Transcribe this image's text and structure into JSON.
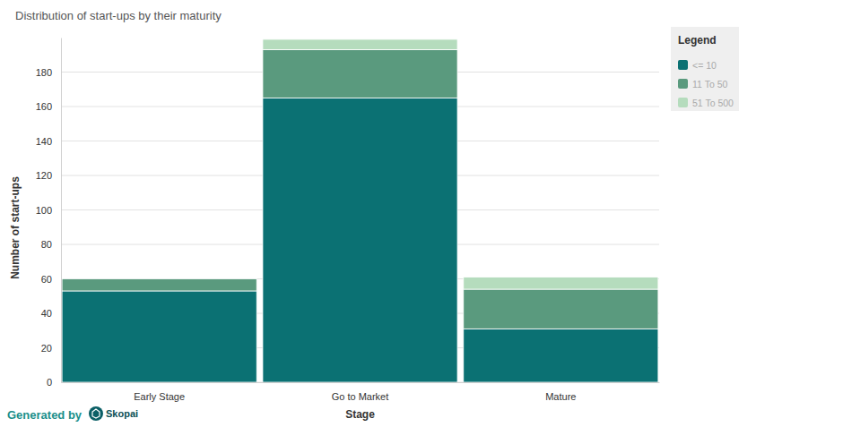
{
  "chart_data": {
    "type": "bar",
    "stacked": true,
    "title": "Distribution of start-ups by their maturity",
    "x_label": "Stage",
    "y_label": "Number of start-ups",
    "legend_title": "Legend",
    "legend": "top-right",
    "source": "Generated by",
    "source_name": "Skopai",
    "categories": [
      "Early Stage",
      "Go to Market",
      "Mature"
    ],
    "series": [
      {
        "name": "<= 10",
        "color": "#0b7173",
        "values": [
          53,
          165,
          31
        ]
      },
      {
        "name": "11 To 50",
        "color": "#5a9a7e",
        "values": [
          7,
          28,
          23
        ]
      },
      {
        "name": "51 To 500",
        "color": "#b5dcbd",
        "values": [
          0,
          6,
          7
        ]
      }
    ],
    "ylim": [
      0,
      200
    ],
    "yticks": [
      0,
      20,
      40,
      60,
      80,
      100,
      120,
      140,
      160,
      180
    ],
    "grid": true,
    "data_labels": false
  }
}
